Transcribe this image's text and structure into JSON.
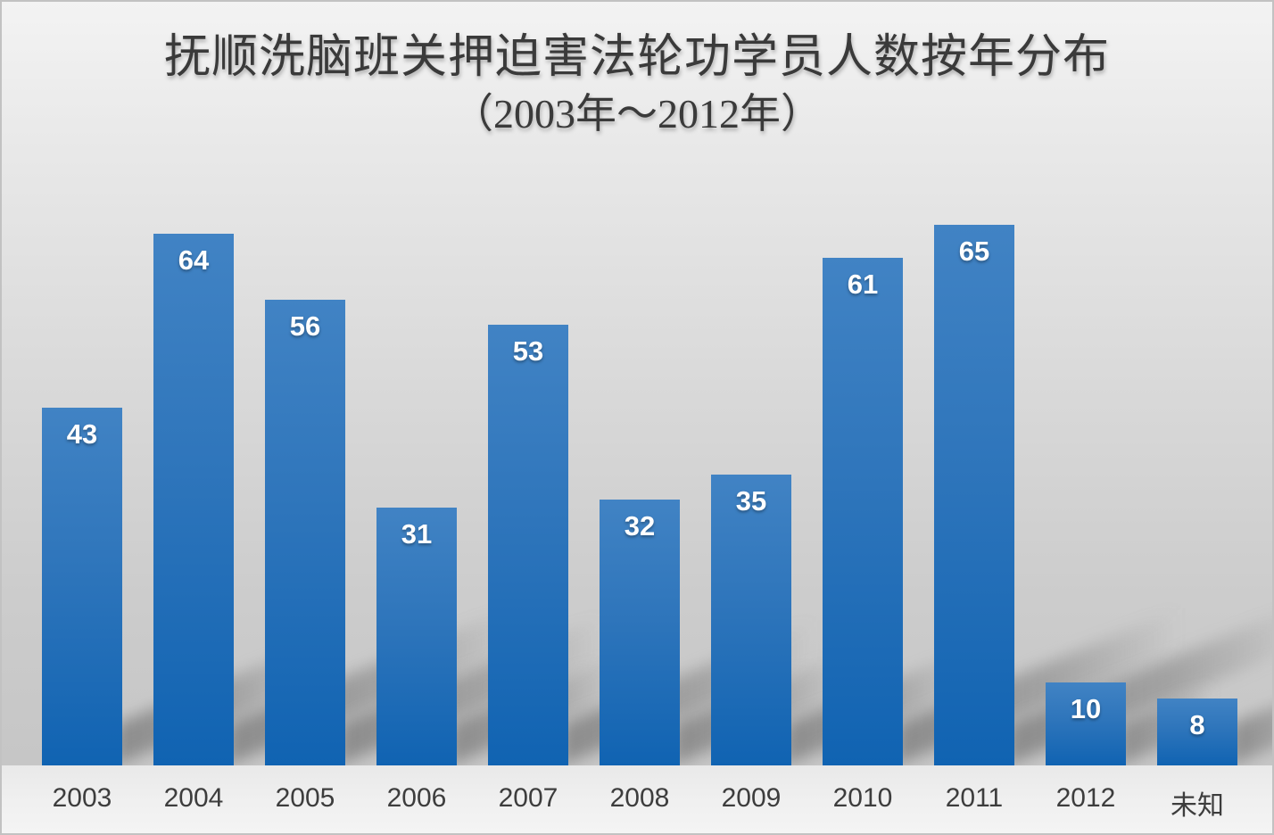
{
  "chart_data": {
    "type": "bar",
    "title": "抚顺洗脑班关押迫害法轮功学员人数按年分布（2003年～2012年）",
    "title_line1": "抚顺洗脑班关押迫害法轮功学员人数按年分布",
    "title_line2": "（2003年～2012年）",
    "categories": [
      "2003",
      "2004",
      "2005",
      "2006",
      "2007",
      "2008",
      "2009",
      "2010",
      "2011",
      "2012",
      "未知"
    ],
    "values": [
      43,
      64,
      56,
      31,
      53,
      32,
      35,
      61,
      65,
      10,
      8
    ],
    "xlabel": "",
    "ylabel": "",
    "ylim": [
      0,
      70
    ],
    "grid": false,
    "legend": "none",
    "data_labels": "inside-end",
    "bar_color_top": "#4183c4",
    "bar_color_bottom": "#1063b2",
    "value_label_color": "#ffffff",
    "tick_label_color": "#3d3d3d",
    "title_color": "#3a3a3a",
    "background_top": "#f3f3f3",
    "background_bottom": "#c6c6c6",
    "floor_strip_color": "#efefef",
    "shadow_style": "perspective-upper-right"
  }
}
